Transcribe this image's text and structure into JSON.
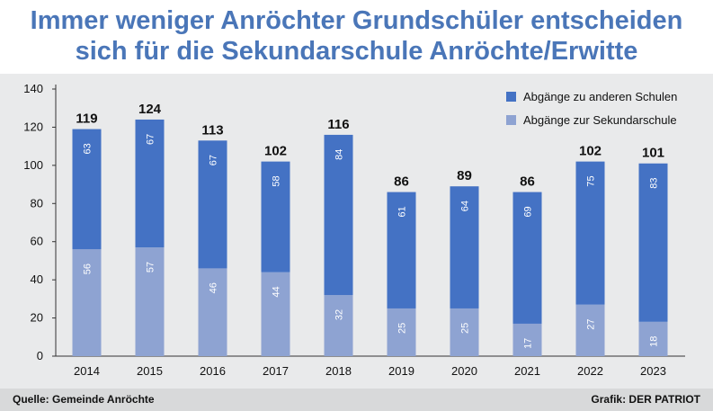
{
  "title_line1": "Immer weniger Anröchter Grundschüler entscheiden",
  "title_line2": "sich für die Sekundarschule Anröchte/Erwitte",
  "footer": {
    "source": "Quelle: Gemeinde Anröchte",
    "credit": "Grafik: DER PATRIOT"
  },
  "colors": {
    "top_series": "#4472c4",
    "bottom_series": "#8ea3d2",
    "background": "#e9eaeb",
    "title": "#4a76b8"
  },
  "chart_data": {
    "type": "bar",
    "stacked": true,
    "categories": [
      "2014",
      "2015",
      "2016",
      "2017",
      "2018",
      "2019",
      "2020",
      "2021",
      "2022",
      "2023"
    ],
    "series": [
      {
        "name": "Abgänge zur Sekundarschule",
        "values": [
          56,
          57,
          46,
          44,
          32,
          25,
          25,
          17,
          27,
          18
        ]
      },
      {
        "name": "Abgänge zu anderen Schulen",
        "values": [
          63,
          67,
          67,
          58,
          84,
          61,
          64,
          69,
          75,
          83
        ]
      }
    ],
    "totals": [
      119,
      124,
      113,
      102,
      116,
      86,
      89,
      86,
      102,
      101
    ],
    "ylim": [
      0,
      140
    ],
    "yticks": [
      0,
      20,
      40,
      60,
      80,
      100,
      120,
      140
    ],
    "legend_position": "top-right",
    "grid": false
  }
}
